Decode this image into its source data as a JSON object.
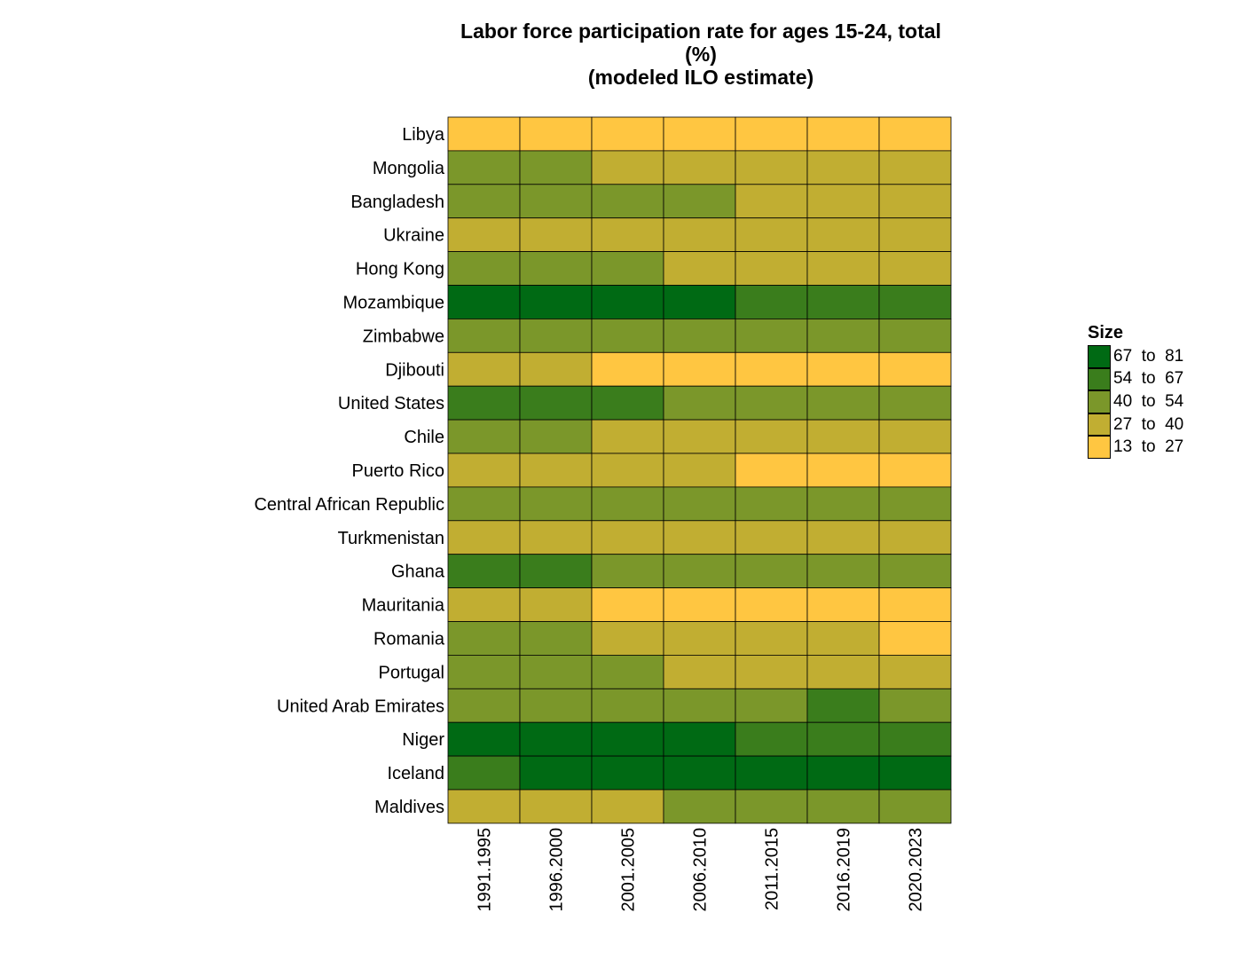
{
  "chart_data": {
    "type": "heatmap",
    "title_lines": [
      "Labor force participation rate for ages 15-24, total",
      "(%)",
      "(modeled ILO estimate)"
    ],
    "xlabel": "",
    "ylabel": "",
    "x_categories": [
      "1991.1995",
      "1996.2000",
      "2001.2005",
      "2006.2010",
      "2011.2015",
      "2016.2019",
      "2020.2023"
    ],
    "y_categories": [
      "Libya",
      "Mongolia",
      "Bangladesh",
      "Ukraine",
      "Hong Kong",
      "Mozambique",
      "Zimbabwe",
      "Djibouti",
      "United States",
      "Chile",
      "Puerto Rico",
      "Central African Republic",
      "Turkmenistan",
      "Ghana",
      "Mauritania",
      "Romania",
      "Portugal",
      "United Arab Emirates",
      "Niger",
      "Iceland",
      "Maldives"
    ],
    "bins": [
      {
        "label": "67  to  81",
        "min": 67,
        "max": 81,
        "color": "#006a14"
      },
      {
        "label": "54  to  67",
        "min": 54,
        "max": 67,
        "color": "#3a7d1c"
      },
      {
        "label": "40  to  54",
        "min": 40,
        "max": 54,
        "color": "#7b972a"
      },
      {
        "label": "27  to  40",
        "min": 27,
        "max": 40,
        "color": "#c1ae32"
      },
      {
        "label": "13  to  27",
        "min": 13,
        "max": 27,
        "color": "#ffc641"
      }
    ],
    "values": [
      [
        20,
        20,
        20,
        20,
        20,
        20,
        20
      ],
      [
        45,
        45,
        35,
        35,
        35,
        35,
        35
      ],
      [
        45,
        45,
        45,
        45,
        35,
        35,
        35
      ],
      [
        35,
        35,
        35,
        35,
        35,
        35,
        35
      ],
      [
        45,
        45,
        45,
        35,
        35,
        35,
        35
      ],
      [
        75,
        75,
        75,
        75,
        60,
        60,
        60
      ],
      [
        45,
        45,
        45,
        45,
        45,
        45,
        45
      ],
      [
        35,
        35,
        20,
        20,
        20,
        20,
        20
      ],
      [
        60,
        60,
        60,
        45,
        45,
        45,
        45
      ],
      [
        45,
        45,
        35,
        35,
        35,
        35,
        35
      ],
      [
        35,
        35,
        35,
        35,
        20,
        20,
        20
      ],
      [
        45,
        45,
        45,
        45,
        45,
        45,
        45
      ],
      [
        35,
        35,
        35,
        35,
        35,
        35,
        35
      ],
      [
        60,
        60,
        45,
        45,
        45,
        45,
        45
      ],
      [
        35,
        35,
        20,
        20,
        20,
        20,
        20
      ],
      [
        45,
        45,
        35,
        35,
        35,
        35,
        20
      ],
      [
        45,
        45,
        45,
        35,
        35,
        35,
        35
      ],
      [
        45,
        45,
        45,
        45,
        45,
        60,
        45
      ],
      [
        75,
        75,
        75,
        75,
        60,
        60,
        60
      ],
      [
        60,
        75,
        75,
        75,
        75,
        75,
        75
      ],
      [
        35,
        35,
        35,
        45,
        45,
        45,
        45
      ]
    ],
    "legend": {
      "title": "Size",
      "position": "right"
    },
    "grid": false
  }
}
